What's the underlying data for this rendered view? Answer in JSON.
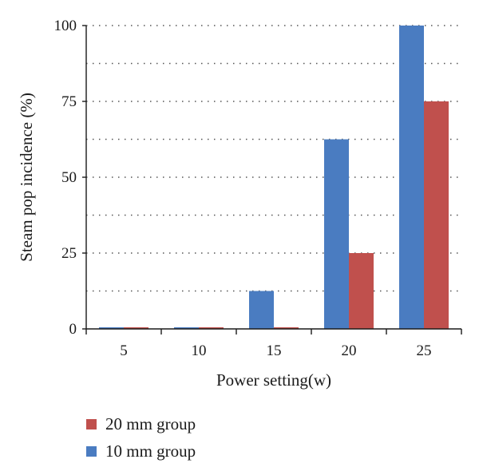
{
  "chart_data": {
    "type": "bar",
    "title": "",
    "xlabel": "Power setting(w)",
    "ylabel": "Steam pop incidence (%)",
    "categories": [
      "5",
      "10",
      "15",
      "20",
      "25"
    ],
    "ylim": [
      0,
      100
    ],
    "yticks": [
      0,
      25,
      50,
      75,
      100
    ],
    "grid": "horizontal dotted",
    "legend_placement": "bottom",
    "series": [
      {
        "name": "10 mm group",
        "color": "#4a7cc1",
        "values": [
          0,
          0,
          12.5,
          62.5,
          100
        ]
      },
      {
        "name": "20 mm group",
        "color": "#c0504d",
        "values": [
          0,
          0,
          0,
          25,
          75
        ]
      }
    ]
  },
  "legend": {
    "items": [
      {
        "label": "20 mm group",
        "color": "#c0504d"
      },
      {
        "label": "10 mm group",
        "color": "#4a7cc1"
      }
    ]
  }
}
